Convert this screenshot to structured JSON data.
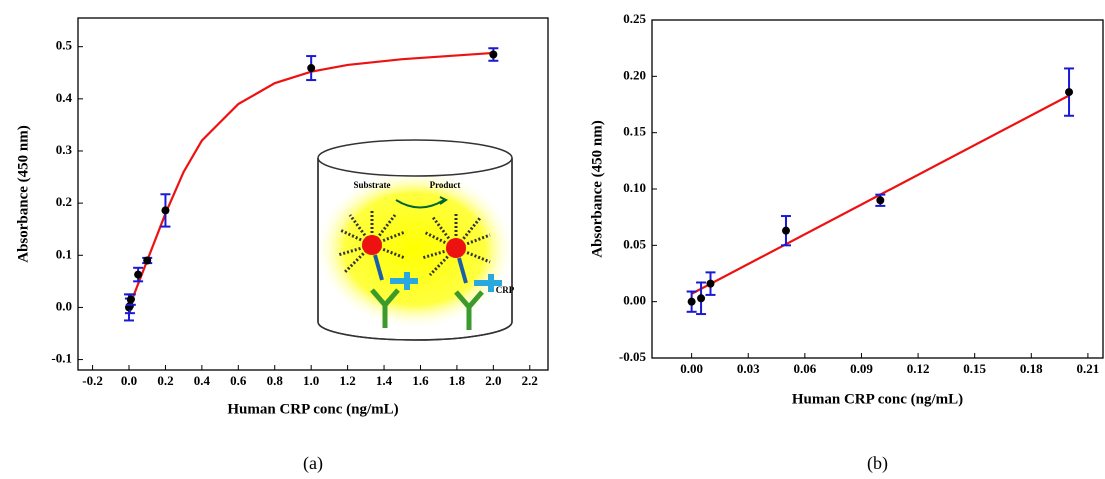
{
  "chart_data": [
    {
      "type": "scatter",
      "panel_label": "(a)",
      "x_label": "Human  CRP conc (ng/mL)",
      "y_label": "Absorbance  (450 nm)",
      "x": [
        0,
        0.005,
        0.01,
        0.05,
        0.1,
        0.2,
        1.0,
        2.0
      ],
      "values": [
        0,
        0.003,
        0.015,
        0.063,
        0.09,
        0.186,
        0.459,
        0.485
      ],
      "errors": [
        0.025,
        0.014,
        0.01,
        0.013,
        0.005,
        0.031,
        0.023,
        0.012
      ],
      "color": "#000000",
      "error_color": "#1a1ad6",
      "fit": {
        "x": [
          0,
          0.1,
          0.2,
          0.3,
          0.4,
          0.6,
          0.8,
          1.0,
          1.2,
          1.5,
          2.0
        ],
        "values": [
          0,
          0.09,
          0.18,
          0.26,
          0.32,
          0.39,
          0.43,
          0.452,
          0.465,
          0.476,
          0.488
        ],
        "color": "#ee1111"
      },
      "xlim": [
        -0.28,
        2.3
      ],
      "ylim": [
        -0.12,
        0.555
      ],
      "xticks": [
        -0.2,
        {
          "value": 0,
          "label": "0.0"
        },
        0.2,
        0.4,
        0.6,
        0.8,
        {
          "value": 1,
          "label": "1.0"
        },
        1.2,
        1.4,
        1.6,
        1.8,
        {
          "value": 2,
          "label": "2.0"
        },
        2.2
      ],
      "yticks": [
        -0.1,
        {
          "value": 0,
          "label": "0.0"
        },
        0.1,
        0.2,
        0.3,
        0.4,
        0.5
      ],
      "annotations": [
        "Substrate",
        "Product",
        "CRP"
      ]
    },
    {
      "type": "scatter",
      "panel_label": "(b)",
      "x_label": "Human  CRP conc (ng/mL)",
      "y_label": "Absorbance  (450 nm)",
      "x": [
        0,
        0.005,
        0.01,
        0.05,
        0.1,
        0.2
      ],
      "values": [
        0,
        0.003,
        0.016,
        0.063,
        0.09,
        0.186
      ],
      "errors": [
        0.009,
        0.014,
        0.01,
        0.013,
        0.005,
        0.021
      ],
      "color": "#000000",
      "error_color": "#1a1ad6",
      "fit": {
        "x": [
          0,
          0.2
        ],
        "values": [
          0.007,
          0.183
        ],
        "color": "#ee1111"
      },
      "xlim": [
        -0.021,
        0.218
      ],
      "ylim": [
        -0.05,
        0.25
      ],
      "xticks": [
        {
          "value": 0,
          "label": "0.00"
        },
        0.03,
        0.06,
        0.09,
        0.12,
        0.15,
        0.18,
        0.21
      ],
      "yticks": [
        -0.05,
        {
          "value": 0,
          "label": "0.00"
        },
        0.05,
        {
          "value": 0.1,
          "label": "0.10"
        },
        0.15,
        {
          "value": 0.2,
          "label": "0.20"
        },
        0.25
      ]
    }
  ]
}
